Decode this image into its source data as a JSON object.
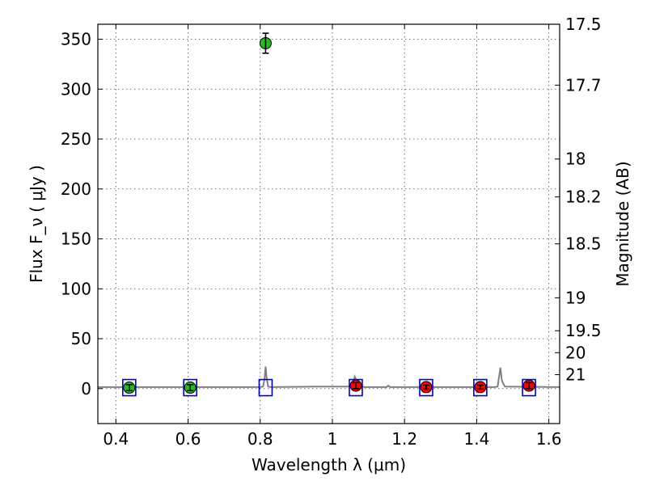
{
  "chart_data": {
    "type": "scatter",
    "xlabel": "Wavelength  λ (μm)",
    "ylabel": "Flux  F_ν  ( μJy )",
    "y2label": "Magnitude (AB)",
    "xlim": [
      0.35,
      1.63
    ],
    "ylim": [
      -35,
      365
    ],
    "grid": true,
    "x_ticks": [
      0.4,
      0.6,
      0.8,
      1.0,
      1.2,
      1.4,
      1.6
    ],
    "x_tick_labels": [
      "0.4",
      "0.6",
      "0.8",
      "1",
      "1.2",
      "1.4",
      "1.6"
    ],
    "y_ticks": [
      0,
      50,
      100,
      150,
      200,
      250,
      300,
      350
    ],
    "y_tick_labels": [
      "0",
      "50",
      "100",
      "150",
      "200",
      "250",
      "300",
      "350"
    ],
    "y2_ticks": [
      {
        "label": "17.5",
        "flux": 365
      },
      {
        "label": "17.7",
        "flux": 304
      },
      {
        "label": "18",
        "flux": 230
      },
      {
        "label": "18.2",
        "flux": 192
      },
      {
        "label": "18.5",
        "flux": 145
      },
      {
        "label": "19",
        "flux": 91
      },
      {
        "label": "19.5",
        "flux": 58
      },
      {
        "label": "20",
        "flux": 36
      },
      {
        "label": "21",
        "flux": 14
      }
    ],
    "series": [
      {
        "marker": "circle",
        "color": "#1fbf1f",
        "points": [
          {
            "x": 0.437,
            "y": 1.0,
            "err": 3
          },
          {
            "x": 0.606,
            "y": 1.0,
            "err": 3
          },
          {
            "x": 0.815,
            "y": 346,
            "err": 10
          }
        ]
      },
      {
        "marker": "circle",
        "color": "#ff0000",
        "points": [
          {
            "x": 1.065,
            "y": 3.0,
            "err": 3
          },
          {
            "x": 1.26,
            "y": 1.5,
            "err": 2
          },
          {
            "x": 1.41,
            "y": 1.5,
            "err": 2
          },
          {
            "x": 1.545,
            "y": 3.0,
            "err": 3
          }
        ]
      },
      {
        "marker": "open-square",
        "color": "#0000cc",
        "points": [
          {
            "x": 0.437,
            "y": 1.0
          },
          {
            "x": 0.606,
            "y": 1.0
          },
          {
            "x": 0.815,
            "y": 1.0
          },
          {
            "x": 1.065,
            "y": 1.0
          },
          {
            "x": 1.26,
            "y": 1.0
          },
          {
            "x": 1.41,
            "y": 1.0
          },
          {
            "x": 1.545,
            "y": 1.0
          }
        ]
      }
    ],
    "spectrum": {
      "color": "#808080",
      "x": [
        0.35,
        0.8,
        0.808,
        0.812,
        0.815,
        0.818,
        0.822,
        0.83,
        0.95,
        1.05,
        1.058,
        1.062,
        1.066,
        1.07,
        1.078,
        1.09,
        1.15,
        1.155,
        1.16,
        1.45,
        1.458,
        1.462,
        1.466,
        1.47,
        1.478,
        1.63
      ],
      "y": [
        1.5,
        1.5,
        2,
        10,
        22,
        10,
        2,
        1.5,
        2,
        2,
        3,
        12,
        9,
        5,
        2,
        1.5,
        1.5,
        3,
        1.5,
        1.5,
        2,
        12,
        21,
        8,
        2,
        1.5
      ]
    }
  }
}
